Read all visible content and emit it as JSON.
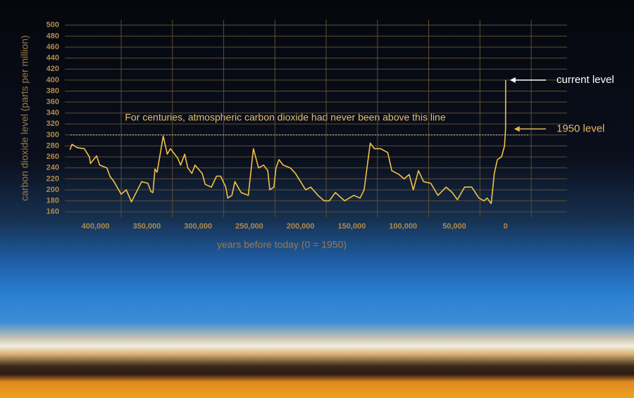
{
  "chart_data": {
    "type": "line",
    "y_label": "carbon dioxide level (parts per million)",
    "x_label": "years before today (0 = 1950)",
    "annotation": "For centuries, atmospheric carbon dioxide had never been above this line",
    "reference_line": 300,
    "current_label": "current level",
    "level_1950_label": "1950 level",
    "color": "#f3c044",
    "grid": true,
    "xlim": [
      430000,
      -60000
    ],
    "ylim": [
      150,
      510
    ],
    "xticks": [
      {
        "value": 400000,
        "label": "400,000"
      },
      {
        "value": 350000,
        "label": "350,000"
      },
      {
        "value": 300000,
        "label": "300,000"
      },
      {
        "value": 250000,
        "label": "250,000"
      },
      {
        "value": 200000,
        "label": "200,000"
      },
      {
        "value": 150000,
        "label": "150,000"
      },
      {
        "value": 100000,
        "label": "100,000"
      },
      {
        "value": 50000,
        "label": "50,000"
      },
      0
    ],
    "yticks": [
      160,
      180,
      200,
      220,
      240,
      260,
      280,
      300,
      320,
      340,
      360,
      380,
      400,
      420,
      440,
      460,
      480,
      500
    ],
    "x": [
      425000,
      423000,
      418000,
      411000,
      406000,
      405000,
      399000,
      396000,
      389000,
      386000,
      382000,
      375000,
      370000,
      365000,
      355000,
      349000,
      346000,
      344000,
      342000,
      340000,
      334000,
      330000,
      327000,
      320000,
      317000,
      313000,
      310000,
      306000,
      303000,
      296000,
      293000,
      287000,
      282000,
      278000,
      273000,
      271000,
      267000,
      264000,
      258000,
      251000,
      246000,
      241000,
      236000,
      232000,
      230000,
      226000,
      224000,
      221000,
      217000,
      210000,
      205000,
      200000,
      195000,
      190000,
      183000,
      177000,
      172000,
      166000,
      157000,
      148000,
      142000,
      138000,
      132000,
      128000,
      122000,
      115000,
      111000,
      104000,
      99000,
      94000,
      90000,
      85000,
      80000,
      73000,
      66000,
      58000,
      52000,
      47000,
      40000,
      33000,
      26000,
      21000,
      18000,
      14000,
      11000,
      8000,
      4000,
      1000,
      0,
      -65
    ],
    "values": [
      273,
      283,
      277,
      275,
      260,
      248,
      262,
      245,
      240,
      225,
      215,
      192,
      200,
      178,
      215,
      212,
      197,
      195,
      238,
      232,
      298,
      265,
      275,
      258,
      245,
      265,
      240,
      230,
      245,
      230,
      210,
      205,
      225,
      225,
      205,
      185,
      190,
      215,
      195,
      190,
      275,
      240,
      245,
      235,
      200,
      205,
      240,
      255,
      245,
      240,
      230,
      215,
      200,
      205,
      190,
      180,
      180,
      195,
      180,
      190,
      185,
      200,
      285,
      275,
      275,
      268,
      235,
      228,
      220,
      228,
      200,
      235,
      215,
      212,
      190,
      205,
      195,
      182,
      205,
      205,
      185,
      180,
      185,
      175,
      230,
      255,
      260,
      280,
      311,
      400
    ]
  }
}
